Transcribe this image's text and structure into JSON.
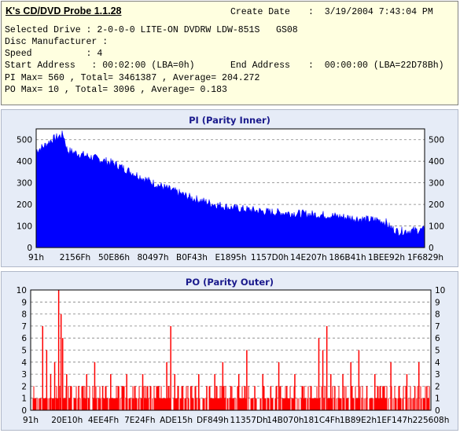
{
  "header": {
    "app_title": "K's CD/DVD Probe 1.1.28",
    "create_date_label": "Create Date",
    "create_date_value": ":  3/19/2004 7:43:04 PM",
    "selected_drive": "Selected Drive : 2-0-0-0 LITE-ON DVDRW LDW-851S   GS08",
    "disc_manufacturer": "Disc Manufacturer :",
    "speed": "Speed          : 4",
    "start_address": "Start Address   : 00:02:00 (LBA=0h)",
    "end_address_label": "End Address",
    "end_address_value": ":  00:00:00 (LBA=22D78Bh)",
    "pi_stats": "PI Max= 560 , Total= 3461387 , Average= 204.272",
    "po_stats": "PO Max= 10 , Total= 3096 , Average= 0.183"
  },
  "chart_data": [
    {
      "type": "area",
      "title": "PI (Parity Inner)",
      "xlabel": "",
      "ylabel": "",
      "ylim": [
        0,
        550
      ],
      "yticks": [
        0,
        100,
        200,
        300,
        400,
        500
      ],
      "xtick_labels": [
        "91h",
        "2156Fh",
        "50E86h",
        "80497h",
        "B0F43h",
        "E1895h",
        "1157D0h",
        "14E207h",
        "186B41h",
        "1BEE92h",
        "1F6829h"
      ],
      "grid": true,
      "color": "#0000ff",
      "profile": [
        [
          0,
          450
        ],
        [
          2,
          470
        ],
        [
          4,
          500
        ],
        [
          7,
          525
        ],
        [
          8,
          450
        ],
        [
          12,
          430
        ],
        [
          16,
          410
        ],
        [
          20,
          390
        ],
        [
          25,
          345
        ],
        [
          30,
          300
        ],
        [
          35,
          265
        ],
        [
          40,
          230
        ],
        [
          45,
          205
        ],
        [
          50,
          185
        ],
        [
          55,
          175
        ],
        [
          60,
          165
        ],
        [
          65,
          160
        ],
        [
          70,
          155
        ],
        [
          75,
          150
        ],
        [
          80,
          140
        ],
        [
          85,
          130
        ],
        [
          88,
          128
        ],
        [
          90,
          118
        ],
        [
          91,
          95
        ],
        [
          93,
          75
        ],
        [
          96,
          78
        ],
        [
          100,
          82
        ]
      ]
    },
    {
      "type": "bar",
      "title": "PO (Parity Outer)",
      "xlabel": "",
      "ylabel": "",
      "ylim": [
        0,
        10
      ],
      "yticks": [
        0,
        1,
        2,
        3,
        4,
        5,
        6,
        7,
        8,
        9,
        10
      ],
      "xtick_labels": [
        "91h",
        "20E10h",
        "4EE4Fh",
        "7E24Fh",
        "ADE15h",
        "DF849h",
        "11357Dh",
        "14B070h",
        "181C4Fh",
        "1B89E2h",
        "1EF147h",
        "225608h"
      ],
      "grid": true,
      "color": "#ff0000",
      "spikes": [
        [
          3,
          7
        ],
        [
          4,
          5
        ],
        [
          5,
          3
        ],
        [
          6,
          4
        ],
        [
          7,
          10
        ],
        [
          7.6,
          8
        ],
        [
          8,
          6
        ],
        [
          9,
          3
        ],
        [
          10,
          2
        ],
        [
          12,
          2
        ],
        [
          14,
          3
        ],
        [
          16,
          4
        ],
        [
          18,
          2
        ],
        [
          20,
          3
        ],
        [
          22,
          2
        ],
        [
          24,
          3
        ],
        [
          26,
          2
        ],
        [
          28,
          3
        ],
        [
          30,
          2
        ],
        [
          32,
          2
        ],
        [
          34,
          4
        ],
        [
          35,
          7
        ],
        [
          36,
          3
        ],
        [
          38,
          2
        ],
        [
          40,
          2
        ],
        [
          42,
          3
        ],
        [
          44,
          2
        ],
        [
          46,
          3
        ],
        [
          48,
          4
        ],
        [
          50,
          2
        ],
        [
          52,
          3
        ],
        [
          54,
          5
        ],
        [
          56,
          2
        ],
        [
          58,
          3
        ],
        [
          60,
          2
        ],
        [
          62,
          4
        ],
        [
          64,
          2
        ],
        [
          66,
          3
        ],
        [
          68,
          2
        ],
        [
          70,
          2
        ],
        [
          72,
          6
        ],
        [
          73,
          5
        ],
        [
          74,
          7
        ],
        [
          75,
          3
        ],
        [
          76,
          2
        ],
        [
          78,
          3
        ],
        [
          80,
          4
        ],
        [
          82,
          5
        ],
        [
          84,
          2
        ],
        [
          86,
          3
        ],
        [
          88,
          2
        ],
        [
          90,
          4
        ],
        [
          92,
          2
        ],
        [
          94,
          3
        ],
        [
          96,
          2
        ],
        [
          97,
          4
        ],
        [
          99,
          2
        ]
      ]
    }
  ]
}
